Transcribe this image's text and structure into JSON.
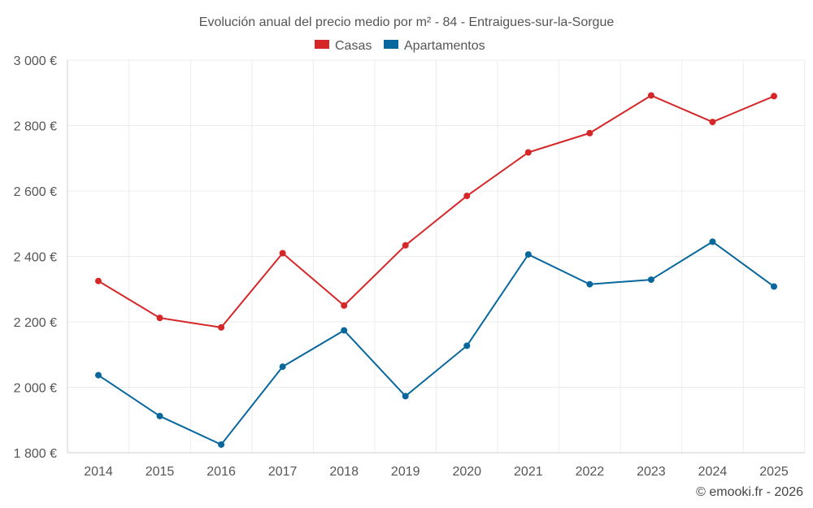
{
  "chart_data": {
    "type": "line",
    "title": "Evolución anual del precio medio por m² - 84 - Entraigues-sur-la-Sorgue",
    "xlabel": "",
    "ylabel": "",
    "categories": [
      "2014",
      "2015",
      "2016",
      "2017",
      "2018",
      "2019",
      "2020",
      "2021",
      "2022",
      "2023",
      "2024",
      "2025"
    ],
    "ylim": [
      1800,
      3000
    ],
    "yticks": [
      1800,
      2000,
      2200,
      2400,
      2600,
      2800,
      3000
    ],
    "ytick_labels": [
      "1 800 €",
      "2 000 €",
      "2 200 €",
      "2 400 €",
      "2 600 €",
      "2 800 €",
      "3 000 €"
    ],
    "grid": true,
    "legend_position": "top-center",
    "series": [
      {
        "name": "Casas",
        "color": "#d62728",
        "values": [
          2325,
          2212,
          2183,
          2410,
          2250,
          2434,
          2585,
          2718,
          2777,
          2892,
          2811,
          2890
        ]
      },
      {
        "name": "Apartamentos",
        "color": "#08679c",
        "values": [
          2037,
          1912,
          1825,
          2063,
          2174,
          1973,
          2127,
          2406,
          2315,
          2329,
          2445,
          2308
        ]
      }
    ]
  },
  "credit": "© emooki.fr - 2026"
}
